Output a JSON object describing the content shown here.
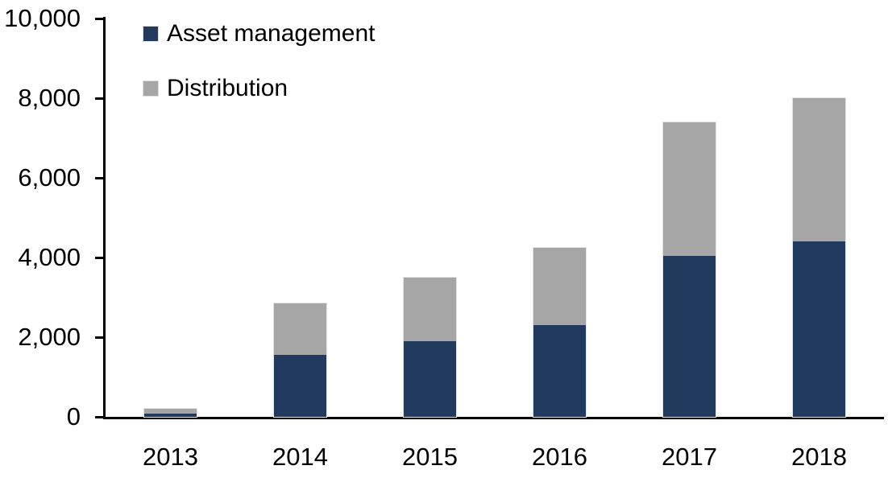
{
  "chart_data": {
    "type": "bar",
    "stacked": true,
    "title": "",
    "xlabel": "",
    "ylabel": "",
    "categories": [
      "2013",
      "2014",
      "2015",
      "2016",
      "2017",
      "2018"
    ],
    "series": [
      {
        "name": "Asset management",
        "color": "#233A5F",
        "values": [
          80,
          1550,
          1900,
          2300,
          4050,
          4400
        ]
      },
      {
        "name": "Distribution",
        "color": "#A6A6A6",
        "values": [
          120,
          1300,
          1600,
          1950,
          3350,
          3600
        ]
      }
    ],
    "totals": [
      200,
      2850,
      3500,
      4250,
      7400,
      8000
    ],
    "ylim": [
      0,
      10000
    ],
    "yticks": [
      0,
      2000,
      4000,
      6000,
      8000,
      10000
    ],
    "ytick_labels": [
      "0",
      "2,000",
      "4,000",
      "6,000",
      "8,000",
      "10,000"
    ],
    "grid": false,
    "legend_position": "top-left-inside",
    "axis_color": "#000000",
    "background": "#FFFFFF"
  }
}
